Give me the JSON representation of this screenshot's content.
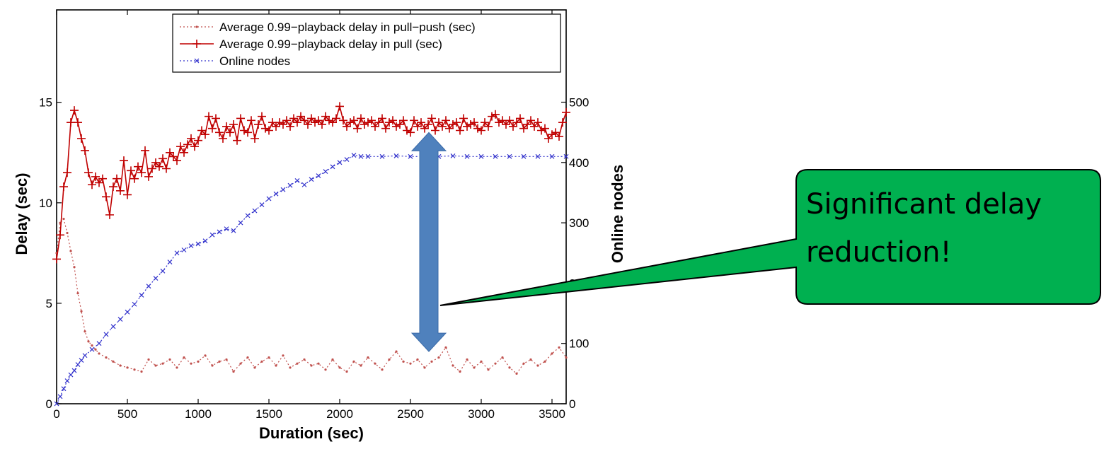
{
  "chart_data": {
    "type": "line",
    "title": "",
    "xlabel": "Duration (sec)",
    "ylabel": "Delay (sec)",
    "y2label": "Online nodes",
    "xlim": [
      0,
      3600
    ],
    "ylim": [
      0,
      19.6
    ],
    "y2lim": [
      0,
      653
    ],
    "x_ticks": [
      0,
      500,
      1000,
      1500,
      2000,
      2500,
      3000,
      3500
    ],
    "y_ticks": [
      0,
      5,
      10,
      15
    ],
    "y2_ticks": [
      0,
      100,
      200,
      300,
      400,
      500
    ],
    "grid": false,
    "legend_position": "top-right",
    "series": [
      {
        "name": "Average 0.99−playback delay in pull−push (sec)",
        "axis": "left",
        "color": "#c0504d",
        "style": "dotted",
        "marker": "dot",
        "x": [
          0,
          25,
          50,
          75,
          100,
          125,
          150,
          175,
          200,
          225,
          250,
          275,
          300,
          350,
          400,
          450,
          500,
          550,
          600,
          650,
          700,
          750,
          800,
          850,
          900,
          950,
          1000,
          1050,
          1100,
          1150,
          1200,
          1250,
          1300,
          1350,
          1400,
          1450,
          1500,
          1550,
          1600,
          1650,
          1700,
          1750,
          1800,
          1850,
          1900,
          1950,
          2000,
          2050,
          2100,
          2150,
          2200,
          2250,
          2300,
          2350,
          2400,
          2450,
          2500,
          2550,
          2600,
          2650,
          2700,
          2750,
          2800,
          2850,
          2900,
          2950,
          3000,
          3050,
          3100,
          3150,
          3200,
          3250,
          3300,
          3350,
          3400,
          3450,
          3500,
          3550,
          3600
        ],
        "y": [
          7.5,
          9.0,
          9.2,
          8.5,
          7.6,
          6.8,
          5.5,
          4.6,
          3.6,
          3.1,
          2.9,
          2.7,
          2.5,
          2.3,
          2.1,
          1.9,
          1.8,
          1.7,
          1.6,
          2.2,
          1.9,
          2.0,
          2.2,
          1.8,
          2.3,
          2.0,
          2.1,
          2.4,
          1.9,
          2.1,
          2.2,
          1.6,
          2.0,
          2.3,
          1.8,
          2.1,
          2.3,
          1.9,
          2.4,
          1.8,
          2.0,
          2.2,
          1.9,
          2.0,
          1.7,
          2.2,
          1.8,
          1.6,
          2.1,
          1.9,
          2.3,
          2.0,
          1.7,
          2.2,
          2.6,
          2.1,
          2.0,
          2.2,
          1.8,
          2.1,
          2.3,
          2.8,
          1.9,
          1.6,
          2.2,
          1.8,
          2.1,
          1.7,
          2.0,
          2.3,
          1.8,
          1.5,
          2.0,
          2.2,
          1.9,
          2.1,
          2.5,
          2.8,
          2.3
        ]
      },
      {
        "name": "Average 0.99−playback delay in pull (sec)",
        "axis": "left",
        "color": "#c00000",
        "style": "solid",
        "marker": "plus",
        "x": [
          0,
          25,
          50,
          75,
          100,
          125,
          150,
          175,
          200,
          225,
          250,
          275,
          300,
          325,
          350,
          375,
          400,
          425,
          450,
          475,
          500,
          525,
          550,
          575,
          600,
          625,
          650,
          675,
          700,
          725,
          750,
          775,
          800,
          825,
          850,
          875,
          900,
          925,
          950,
          975,
          1000,
          1025,
          1050,
          1075,
          1100,
          1125,
          1150,
          1175,
          1200,
          1225,
          1250,
          1275,
          1300,
          1325,
          1350,
          1375,
          1400,
          1425,
          1450,
          1475,
          1500,
          1525,
          1550,
          1575,
          1600,
          1625,
          1650,
          1675,
          1700,
          1725,
          1750,
          1775,
          1800,
          1825,
          1850,
          1875,
          1900,
          1925,
          1950,
          1975,
          2000,
          2025,
          2050,
          2075,
          2100,
          2125,
          2150,
          2175,
          2200,
          2225,
          2250,
          2275,
          2300,
          2325,
          2350,
          2375,
          2400,
          2425,
          2450,
          2475,
          2500,
          2525,
          2550,
          2575,
          2600,
          2625,
          2650,
          2675,
          2700,
          2725,
          2750,
          2775,
          2800,
          2825,
          2850,
          2875,
          2900,
          2925,
          2950,
          2975,
          3000,
          3025,
          3050,
          3075,
          3100,
          3125,
          3150,
          3175,
          3200,
          3225,
          3250,
          3275,
          3300,
          3325,
          3350,
          3375,
          3400,
          3425,
          3450,
          3475,
          3500,
          3525,
          3550,
          3575,
          3600
        ],
        "y": [
          7.2,
          8.4,
          10.8,
          11.5,
          14.0,
          14.6,
          14.0,
          13.2,
          12.6,
          11.5,
          10.9,
          11.3,
          11.0,
          11.2,
          10.3,
          9.4,
          10.8,
          11.2,
          10.6,
          12.1,
          10.4,
          11.6,
          11.2,
          11.8,
          11.5,
          12.6,
          11.3,
          11.7,
          12.0,
          11.8,
          12.2,
          11.7,
          12.5,
          12.3,
          12.1,
          12.8,
          12.5,
          12.9,
          13.2,
          12.8,
          13.1,
          13.6,
          13.4,
          14.3,
          13.7,
          14.2,
          13.5,
          13.2,
          13.8,
          13.5,
          13.9,
          13.1,
          14.2,
          13.6,
          13.5,
          14.1,
          13.2,
          13.9,
          14.3,
          13.7,
          13.6,
          14.0,
          13.8,
          14.0,
          13.9,
          14.1,
          13.8,
          14.2,
          14.0,
          14.3,
          14.1,
          13.9,
          14.2,
          14.0,
          14.1,
          13.9,
          14.3,
          14.1,
          14.0,
          14.2,
          14.8,
          14.1,
          13.8,
          14.0,
          14.1,
          13.7,
          14.2,
          13.9,
          14.0,
          14.1,
          13.8,
          14.0,
          14.2,
          13.7,
          14.0,
          14.1,
          13.8,
          13.9,
          14.1,
          13.6,
          13.5,
          14.1,
          13.8,
          14.0,
          13.7,
          13.9,
          14.2,
          13.6,
          14.0,
          13.8,
          14.1,
          13.7,
          13.9,
          14.0,
          13.6,
          14.2,
          13.8,
          13.9,
          14.0,
          13.7,
          13.6,
          14.0,
          13.8,
          14.3,
          14.4,
          14.0,
          14.1,
          13.9,
          14.1,
          13.8,
          14.0,
          14.2,
          13.7,
          13.9,
          14.1,
          13.8,
          14.0,
          13.6,
          13.7,
          13.2,
          13.4,
          13.5,
          13.3,
          14.0,
          14.5
        ]
      },
      {
        "name": "Online nodes",
        "axis": "right",
        "color": "#3333cc",
        "style": "dotted",
        "marker": "cross",
        "x": [
          0,
          25,
          50,
          75,
          100,
          125,
          150,
          175,
          200,
          250,
          300,
          350,
          400,
          450,
          500,
          550,
          600,
          650,
          700,
          750,
          800,
          850,
          900,
          950,
          1000,
          1050,
          1100,
          1150,
          1200,
          1250,
          1300,
          1350,
          1400,
          1450,
          1500,
          1550,
          1600,
          1650,
          1700,
          1750,
          1800,
          1850,
          1900,
          1950,
          2000,
          2050,
          2100,
          2150,
          2200,
          2300,
          2400,
          2500,
          2600,
          2700,
          2800,
          2900,
          3000,
          3100,
          3200,
          3300,
          3400,
          3500,
          3600
        ],
        "y": [
          0,
          12,
          25,
          38,
          48,
          55,
          65,
          72,
          80,
          90,
          100,
          115,
          128,
          140,
          152,
          165,
          180,
          195,
          208,
          220,
          235,
          250,
          255,
          262,
          265,
          270,
          280,
          285,
          290,
          287,
          300,
          312,
          320,
          330,
          340,
          348,
          355,
          362,
          370,
          363,
          372,
          378,
          385,
          393,
          400,
          405,
          412,
          410,
          410,
          410,
          411,
          410,
          410,
          410,
          411,
          410,
          410,
          410,
          410,
          410,
          410,
          410,
          410
        ]
      }
    ],
    "annotations": [
      {
        "text": "Significant delay reduction!",
        "type": "callout",
        "fill": "#00b050"
      },
      {
        "type": "double-arrow",
        "x": 2630,
        "y_from": 2.6,
        "y_to": 13.5,
        "color": "#4f81bd"
      }
    ]
  }
}
